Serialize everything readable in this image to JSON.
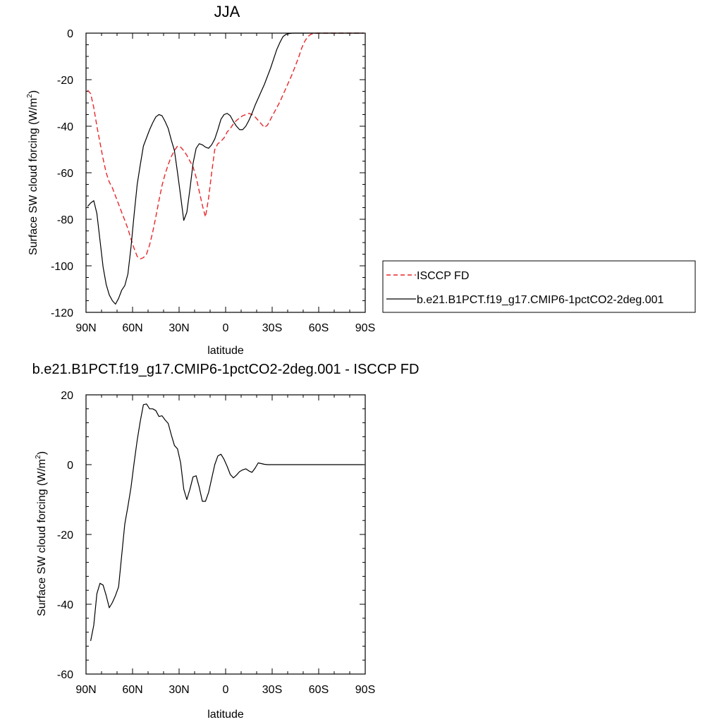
{
  "chart_data": [
    {
      "type": "line",
      "title": "JJA",
      "xlabel": "latitude",
      "ylabel": "Surface SW cloud forcing (W/m",
      "ylabel_sup": "2",
      "ylabel_end": ")",
      "xlim": [
        90,
        -90
      ],
      "ylim": [
        -120,
        0
      ],
      "xticks": [
        90,
        60,
        30,
        0,
        -30,
        -60,
        -90
      ],
      "xtick_labels": [
        "90N",
        "60N",
        "30N",
        "0",
        "30S",
        "60S",
        "90S"
      ],
      "yticks": [
        0,
        -20,
        -40,
        -60,
        -80,
        -100,
        -120
      ],
      "ytick_labels": [
        "0",
        "-20",
        "-40",
        "-60",
        "-80",
        "-100",
        "-120"
      ],
      "legend_position": "right",
      "series": [
        {
          "name": "ISCCP FD",
          "color": "#e8262a",
          "style": "dashed",
          "x": [
            89,
            87,
            85,
            83,
            81,
            79,
            77,
            75,
            73,
            71,
            69,
            67,
            65,
            63,
            61,
            59,
            57,
            55,
            53,
            51,
            49,
            47,
            45,
            43,
            41,
            39,
            37,
            35,
            33,
            31,
            29,
            27,
            25,
            23,
            21,
            19,
            17,
            15,
            13,
            11,
            9,
            7,
            5,
            3,
            1,
            -1,
            -3,
            -5,
            -7,
            -9,
            -11,
            -13,
            -15,
            -17,
            -19,
            -21,
            -23,
            -25,
            -27,
            -29,
            -31,
            -33,
            -35,
            -37,
            -39,
            -41,
            -43,
            -45,
            -47,
            -49,
            -51,
            -53,
            -55,
            -57,
            -59,
            -61,
            -63,
            -65,
            -67,
            -69,
            -71,
            -73,
            -75,
            -77,
            -79,
            -81,
            -83,
            -85,
            -87,
            -89
          ],
          "values": [
            -24.5,
            -26,
            -32,
            -40,
            -47,
            -54,
            -60,
            -64,
            -66.5,
            -70,
            -73.5,
            -77,
            -80.5,
            -84,
            -88.5,
            -92.5,
            -96,
            -97,
            -96.5,
            -95,
            -91,
            -85.5,
            -79,
            -72,
            -65.5,
            -60.5,
            -56.5,
            -53,
            -50.5,
            -48.5,
            -49,
            -50.5,
            -52.5,
            -55,
            -57.5,
            -62,
            -68,
            -74,
            -79,
            -71,
            -60,
            -50,
            -47.5,
            -46.5,
            -45,
            -42.5,
            -41,
            -39,
            -37.5,
            -36.5,
            -35.5,
            -35,
            -34.5,
            -35,
            -36,
            -37.5,
            -39,
            -40.5,
            -39.5,
            -37,
            -34.5,
            -32,
            -29.5,
            -26.5,
            -23.5,
            -20.5,
            -17.5,
            -14,
            -10.5,
            -6.5,
            -3.5,
            -1.5,
            -0.5,
            -0.2,
            0,
            0,
            0,
            0,
            0,
            0,
            0,
            0,
            0,
            0,
            0,
            0,
            0,
            0,
            0,
            0
          ]
        },
        {
          "name": "b.e21.B1PCT.f19_g17.CMIP6-1pctCO2-2deg.001",
          "color": "#000000",
          "style": "solid",
          "x": [
            89,
            87,
            85,
            83,
            81,
            79,
            77,
            75,
            73,
            71,
            69,
            67,
            65,
            63,
            61,
            59,
            57,
            55,
            53,
            51,
            49,
            47,
            45,
            43,
            41,
            39,
            37,
            35,
            33,
            31,
            29,
            27,
            25,
            23,
            21,
            19,
            17,
            15,
            13,
            11,
            9,
            7,
            5,
            3,
            1,
            -1,
            -3,
            -5,
            -7,
            -9,
            -11,
            -13,
            -15,
            -17,
            -19,
            -21,
            -23,
            -25,
            -27,
            -29,
            -31,
            -33,
            -35,
            -37,
            -39,
            -41,
            -43,
            -45,
            -47,
            -49,
            -51,
            -53,
            -55,
            -57,
            -59,
            -61,
            -63,
            -65,
            -67,
            -69,
            -71,
            -73,
            -75,
            -77,
            -79,
            -81,
            -83,
            -85,
            -87,
            -89
          ],
          "values": [
            -74.5,
            -73,
            -72,
            -77.5,
            -89,
            -100.5,
            -108,
            -112.5,
            -115,
            -116.5,
            -114,
            -110.5,
            -108.5,
            -103.5,
            -92,
            -78,
            -65,
            -56.5,
            -48.5,
            -45,
            -41.5,
            -38.5,
            -36,
            -35,
            -35.5,
            -38,
            -41,
            -46,
            -50.5,
            -60,
            -70,
            -80.5,
            -77,
            -67,
            -56,
            -49.5,
            -47.5,
            -48,
            -49,
            -49.5,
            -48,
            -45.5,
            -41.5,
            -37,
            -35,
            -34.5,
            -35.5,
            -38,
            -40,
            -41.5,
            -41.5,
            -40,
            -37.5,
            -34.5,
            -31,
            -28,
            -25,
            -22,
            -18.5,
            -15,
            -11,
            -7,
            -4,
            -1.5,
            -0.5,
            -0.2,
            0,
            0,
            0,
            0,
            0,
            0,
            0,
            0,
            0,
            0,
            0,
            0,
            0,
            0,
            0,
            0,
            0,
            0,
            0,
            0,
            0,
            0,
            0,
            0
          ]
        }
      ]
    },
    {
      "type": "line",
      "title": "b.e21.B1PCT.f19_g17.CMIP6-1pctCO2-2deg.001 - ISCCP FD",
      "xlabel": "latitude",
      "ylabel": "Surface SW cloud forcing (W/m",
      "ylabel_sup": "2",
      "ylabel_end": ")",
      "xlim": [
        90,
        -90
      ],
      "ylim": [
        -60,
        20
      ],
      "xticks": [
        90,
        60,
        30,
        0,
        -30,
        -60,
        -90
      ],
      "xtick_labels": [
        "90N",
        "60N",
        "30N",
        "0",
        "30S",
        "60S",
        "90S"
      ],
      "yticks": [
        20,
        0,
        -20,
        -40,
        -60
      ],
      "ytick_labels": [
        "20",
        "0",
        "-20",
        "-40",
        "-60"
      ],
      "series": [
        {
          "color": "#000000",
          "style": "solid",
          "x": [
            87,
            85,
            83,
            81,
            79,
            77,
            75,
            73,
            71,
            69,
            67,
            65,
            63,
            61,
            59,
            57,
            55,
            53,
            51,
            49,
            47,
            45,
            43,
            41,
            39,
            37,
            35,
            33,
            31,
            29,
            27,
            25,
            23,
            21,
            19,
            17,
            15,
            13,
            11,
            9,
            7,
            5,
            3,
            1,
            -1,
            -3,
            -5,
            -7,
            -9,
            -11,
            -13,
            -15,
            -17,
            -19,
            -21,
            -23,
            -25,
            -27,
            -29,
            -31,
            -33,
            -35,
            -37,
            -39,
            -41,
            -43,
            -45,
            -47,
            -49,
            -51,
            -53,
            -55,
            -57,
            -59,
            -61,
            -63,
            -65,
            -67,
            -69,
            -71,
            -73,
            -75,
            -77,
            -79,
            -81,
            -83,
            -85,
            -87,
            -89
          ],
          "values": [
            -50.5,
            -46,
            -37,
            -34,
            -34.5,
            -37.5,
            -41,
            -39.5,
            -37.5,
            -35,
            -26,
            -17,
            -12,
            -6.5,
            0.5,
            7,
            12.5,
            17.2,
            17.4,
            16,
            16,
            15.5,
            13.8,
            14,
            12.8,
            11.8,
            8.5,
            5.5,
            4.5,
            0.5,
            -7,
            -10,
            -7,
            -3.5,
            -3.2,
            -6.5,
            -10.5,
            -10.5,
            -8,
            -4,
            0,
            2.5,
            3,
            1.5,
            -0.5,
            -2.8,
            -3.8,
            -3,
            -2,
            -1.5,
            -1.2,
            -1.8,
            -2.2,
            -1,
            0.5,
            0.3,
            0.1,
            0,
            0,
            0,
            0,
            0,
            0,
            0,
            0,
            0,
            0,
            0,
            0,
            0,
            0,
            0,
            0,
            0,
            0,
            0,
            0,
            0,
            0,
            0,
            0,
            0,
            0,
            0,
            0,
            0,
            0,
            0,
            0
          ]
        }
      ]
    }
  ]
}
